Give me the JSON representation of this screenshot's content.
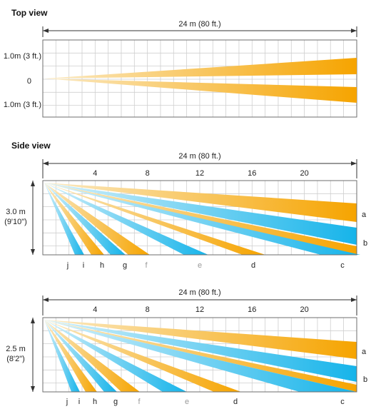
{
  "colors": {
    "orange": "#f6a400",
    "blue": "#16b4ea",
    "pale": "#fbeac4",
    "paleBlue": "#d6f1fb",
    "grid": "#cfcfcf"
  },
  "top_view": {
    "title": "Top view",
    "range_label": "24 m (80 ft.)",
    "y_labels": [
      "1.0m (3 ft.)",
      "0",
      "1.0m (3 ft.)"
    ]
  },
  "side_views": [
    {
      "title": "Side view",
      "range_label": "24 m (80 ft.)",
      "ticks": [
        "4",
        "8",
        "12",
        "16",
        "20"
      ],
      "height_label": "3.0 m",
      "height_sub": "(9'10\")",
      "end_labels": [
        "a",
        "b"
      ],
      "ground_letters": [
        "j",
        "i",
        "h",
        "g",
        "f",
        "e",
        "d",
        "c"
      ],
      "faded_letters": [
        "f",
        "e"
      ],
      "beam_colors": [
        "orange",
        "blue",
        "orange",
        "blue",
        "orange",
        "blue",
        "orange",
        "blue",
        "orange",
        "blue"
      ]
    },
    {
      "title": "",
      "range_label": "24 m (80 ft.)",
      "ticks": [
        "4",
        "8",
        "12",
        "16",
        "20"
      ],
      "height_label": "2.5 m",
      "height_sub": "(8'2\")",
      "end_labels": [
        "a",
        "b"
      ],
      "ground_letters": [
        "j",
        "i",
        "h",
        "g",
        "f",
        "e",
        "d",
        "c"
      ],
      "faded_letters": [
        "f",
        "e"
      ],
      "beam_colors": [
        "orange",
        "blue",
        "orange",
        "blue",
        "orange",
        "blue",
        "orange",
        "blue",
        "orange",
        "blue"
      ]
    }
  ]
}
